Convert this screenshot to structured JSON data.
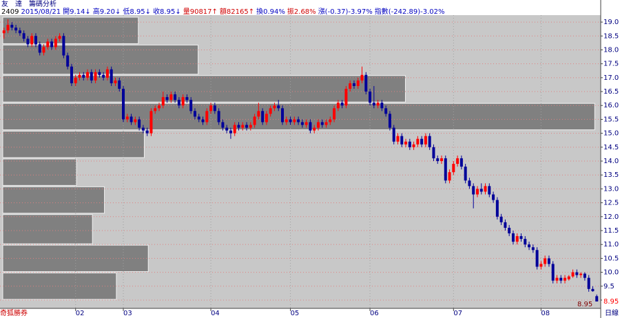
{
  "chart_data": {
    "type": "candlestick",
    "title": "友　達　籌碼分析",
    "info": [
      {
        "text": "2409",
        "color": "#000000"
      },
      {
        "text": "2015/08/21",
        "color": "#0000c0"
      },
      {
        "text": "開9.14↓",
        "color": "#0000c0"
      },
      {
        "text": "高9.20↓",
        "color": "#0000c0"
      },
      {
        "text": "低8.95↓",
        "color": "#0000c0"
      },
      {
        "text": "收8.95↓",
        "color": "#0000c0"
      },
      {
        "text": "量90817↑",
        "color": "#d00000"
      },
      {
        "text": "額82165↑",
        "color": "#d00000"
      },
      {
        "text": "換0.94%",
        "color": "#0000c0"
      },
      {
        "text": "振2.68%",
        "color": "#d00000"
      },
      {
        "text": "漲(-0.37)-3.97%",
        "color": "#0000c0"
      },
      {
        "text": "指數(-242.89)-3.02%",
        "color": "#0000c0"
      }
    ],
    "brand": "奇狐勝券",
    "period": "日線",
    "last_price_label": "8.95",
    "up_color": "#ff0000",
    "down_color": "#000099",
    "grid": true,
    "xlim": [
      -1,
      150
    ],
    "xticks": [
      {
        "value": 18,
        "label": "02"
      },
      {
        "value": 30,
        "label": "03"
      },
      {
        "value": 52,
        "label": "04"
      },
      {
        "value": 72,
        "label": "05"
      },
      {
        "value": 92,
        "label": "06"
      },
      {
        "value": 113,
        "label": "07"
      },
      {
        "value": 135,
        "label": "08"
      }
    ],
    "ylim": [
      8.9,
      19.2
    ],
    "yticks": [
      {
        "value": 9.0,
        "label": "9.0"
      },
      {
        "value": 9.5,
        "label": "9.5"
      },
      {
        "value": 10.0,
        "label": "10.0"
      },
      {
        "value": 10.5,
        "label": "10.5"
      },
      {
        "value": 11.0,
        "label": "11.0"
      },
      {
        "value": 11.5,
        "label": "11.5"
      },
      {
        "value": 12.0,
        "label": "12.0"
      },
      {
        "value": 12.5,
        "label": "12.5"
      },
      {
        "value": 13.0,
        "label": "13.0"
      },
      {
        "value": 13.5,
        "label": "13.5"
      },
      {
        "value": 14.0,
        "label": "14.0"
      },
      {
        "value": 14.5,
        "label": "14.5"
      },
      {
        "value": 15.0,
        "label": "15.0"
      },
      {
        "value": 15.5,
        "label": "15.5"
      },
      {
        "value": 16.0,
        "label": "16.0"
      },
      {
        "value": 16.5,
        "label": "16.5"
      },
      {
        "value": 17.0,
        "label": "17.0"
      },
      {
        "value": 17.5,
        "label": "17.5"
      },
      {
        "value": 18.0,
        "label": "18.0"
      },
      {
        "value": 18.5,
        "label": "18.5"
      },
      {
        "value": 19.0,
        "label": "19.0"
      }
    ],
    "volume_profile": {
      "color": "#808080",
      "xlim": [
        0,
        30
      ],
      "bins": [
        19.2,
        18.2,
        17.1,
        16.1,
        15.1,
        14.1,
        13.1,
        12.1,
        11.0,
        10.0,
        9.0
      ],
      "values": [
        6.8,
        9.8,
        20.2,
        29.7,
        7.1,
        3.7,
        5.1,
        4.5,
        7.3,
        5.7
      ]
    },
    "candles": [
      [
        18.6,
        18.8,
        18.4,
        18.7
      ],
      [
        18.7,
        19.1,
        18.6,
        18.9
      ],
      [
        18.9,
        19.0,
        18.7,
        18.8
      ],
      [
        18.8,
        18.9,
        18.6,
        18.7
      ],
      [
        18.7,
        18.8,
        18.5,
        18.6
      ],
      [
        18.6,
        18.7,
        18.3,
        18.4
      ],
      [
        18.4,
        18.5,
        18.1,
        18.2
      ],
      [
        18.2,
        18.6,
        18.1,
        18.5
      ],
      [
        18.5,
        18.6,
        18.1,
        18.2
      ],
      [
        18.2,
        18.3,
        17.8,
        17.9
      ],
      [
        17.9,
        18.2,
        17.8,
        18.1
      ],
      [
        18.1,
        18.4,
        18.0,
        18.3
      ],
      [
        18.3,
        18.4,
        18.0,
        18.1
      ],
      [
        18.1,
        18.5,
        18.0,
        18.4
      ],
      [
        18.4,
        18.6,
        18.3,
        18.5
      ],
      [
        18.5,
        18.6,
        17.7,
        17.8
      ],
      [
        17.8,
        17.9,
        17.3,
        17.4
      ],
      [
        17.4,
        17.5,
        16.7,
        16.8
      ],
      [
        16.8,
        17.1,
        16.7,
        17.0
      ],
      [
        17.0,
        17.2,
        16.9,
        17.1
      ],
      [
        17.1,
        17.2,
        16.9,
        17.0
      ],
      [
        17.0,
        17.3,
        16.9,
        17.2
      ],
      [
        17.2,
        17.3,
        16.8,
        16.9
      ],
      [
        16.9,
        17.3,
        16.8,
        17.2
      ],
      [
        17.2,
        17.3,
        17.0,
        17.1
      ],
      [
        17.1,
        17.2,
        16.9,
        17.0
      ],
      [
        17.0,
        17.4,
        16.9,
        17.3
      ],
      [
        17.3,
        17.4,
        16.7,
        16.8
      ],
      [
        16.8,
        17.0,
        16.7,
        16.9
      ],
      [
        16.9,
        17.0,
        16.5,
        16.6
      ],
      [
        16.6,
        16.7,
        15.4,
        15.5
      ],
      [
        15.5,
        15.7,
        15.4,
        15.6
      ],
      [
        15.6,
        15.7,
        15.3,
        15.4
      ],
      [
        15.4,
        15.6,
        15.3,
        15.5
      ],
      [
        15.5,
        15.6,
        15.1,
        15.2
      ],
      [
        15.2,
        15.3,
        15.0,
        15.1
      ],
      [
        15.1,
        15.2,
        14.9,
        15.0
      ],
      [
        15.0,
        15.9,
        14.9,
        15.8
      ],
      [
        15.8,
        16.0,
        15.7,
        15.9
      ],
      [
        15.9,
        16.1,
        15.8,
        16.0
      ],
      [
        16.0,
        16.5,
        15.9,
        16.3
      ],
      [
        16.3,
        16.4,
        16.1,
        16.2
      ],
      [
        16.2,
        16.5,
        16.1,
        16.4
      ],
      [
        16.4,
        16.5,
        16.1,
        16.2
      ],
      [
        16.2,
        16.3,
        15.9,
        16.0
      ],
      [
        16.0,
        16.4,
        15.9,
        16.3
      ],
      [
        16.3,
        16.4,
        16.1,
        16.2
      ],
      [
        16.2,
        16.3,
        15.7,
        15.8
      ],
      [
        15.8,
        15.9,
        15.5,
        15.6
      ],
      [
        15.6,
        15.7,
        15.4,
        15.5
      ],
      [
        15.5,
        15.6,
        15.3,
        15.4
      ],
      [
        15.4,
        15.9,
        15.3,
        15.8
      ],
      [
        15.8,
        16.1,
        15.7,
        16.0
      ],
      [
        16.0,
        16.1,
        15.7,
        15.8
      ],
      [
        15.8,
        15.9,
        15.3,
        15.4
      ],
      [
        15.4,
        15.5,
        15.1,
        15.2
      ],
      [
        15.2,
        15.3,
        15.0,
        15.1
      ],
      [
        15.1,
        15.2,
        14.8,
        15.0
      ],
      [
        15.0,
        15.4,
        14.9,
        15.3
      ],
      [
        15.3,
        15.4,
        15.1,
        15.2
      ],
      [
        15.2,
        15.4,
        15.1,
        15.3
      ],
      [
        15.3,
        15.4,
        15.1,
        15.2
      ],
      [
        15.2,
        15.4,
        15.1,
        15.3
      ],
      [
        15.3,
        15.7,
        15.2,
        15.6
      ],
      [
        15.6,
        16.1,
        15.5,
        15.8
      ],
      [
        15.8,
        15.9,
        15.3,
        15.4
      ],
      [
        15.4,
        15.8,
        15.3,
        15.7
      ],
      [
        15.7,
        16.0,
        15.6,
        15.9
      ],
      [
        15.9,
        16.1,
        15.8,
        16.0
      ],
      [
        16.0,
        16.2,
        15.8,
        15.9
      ],
      [
        15.9,
        16.0,
        15.3,
        15.4
      ],
      [
        15.4,
        15.6,
        15.3,
        15.5
      ],
      [
        15.5,
        15.6,
        15.3,
        15.4
      ],
      [
        15.4,
        15.6,
        15.3,
        15.5
      ],
      [
        15.5,
        15.6,
        15.3,
        15.4
      ],
      [
        15.4,
        15.5,
        15.2,
        15.3
      ],
      [
        15.3,
        15.5,
        15.2,
        15.4
      ],
      [
        15.4,
        15.5,
        15.0,
        15.1
      ],
      [
        15.1,
        15.3,
        15.0,
        15.2
      ],
      [
        15.2,
        15.5,
        15.1,
        15.4
      ],
      [
        15.4,
        15.5,
        15.2,
        15.3
      ],
      [
        15.3,
        15.5,
        15.2,
        15.4
      ],
      [
        15.4,
        15.6,
        15.3,
        15.5
      ],
      [
        15.5,
        16.0,
        15.4,
        15.9
      ],
      [
        15.9,
        16.2,
        15.8,
        16.1
      ],
      [
        16.1,
        16.2,
        15.9,
        16.0
      ],
      [
        16.0,
        16.7,
        15.9,
        16.6
      ],
      [
        16.6,
        16.9,
        16.5,
        16.8
      ],
      [
        16.8,
        16.9,
        16.6,
        16.7
      ],
      [
        16.7,
        17.0,
        16.6,
        16.9
      ],
      [
        16.9,
        17.4,
        16.8,
        17.1
      ],
      [
        17.1,
        17.2,
        16.4,
        16.5
      ],
      [
        16.5,
        16.6,
        16.0,
        16.1
      ],
      [
        16.1,
        16.7,
        15.9,
        16.0
      ],
      [
        16.0,
        16.2,
        15.9,
        16.1
      ],
      [
        16.1,
        16.2,
        15.8,
        15.9
      ],
      [
        15.9,
        16.0,
        15.6,
        15.7
      ],
      [
        15.7,
        15.8,
        15.1,
        15.2
      ],
      [
        15.2,
        15.3,
        14.6,
        14.7
      ],
      [
        14.7,
        15.0,
        14.6,
        14.9
      ],
      [
        14.9,
        15.0,
        14.5,
        14.6
      ],
      [
        14.6,
        14.8,
        14.5,
        14.7
      ],
      [
        14.7,
        14.8,
        14.4,
        14.5
      ],
      [
        14.5,
        14.7,
        14.4,
        14.6
      ],
      [
        14.6,
        14.9,
        14.5,
        14.8
      ],
      [
        14.8,
        14.9,
        14.5,
        14.6
      ],
      [
        14.6,
        15.0,
        14.5,
        14.9
      ],
      [
        14.9,
        15.0,
        14.4,
        14.5
      ],
      [
        14.5,
        14.6,
        14.0,
        14.1
      ],
      [
        14.1,
        14.2,
        13.9,
        14.0
      ],
      [
        14.0,
        14.2,
        13.9,
        14.1
      ],
      [
        14.1,
        14.2,
        13.2,
        13.3
      ],
      [
        13.3,
        13.7,
        13.2,
        13.6
      ],
      [
        13.6,
        14.0,
        13.5,
        13.9
      ],
      [
        13.9,
        14.2,
        13.8,
        14.1
      ],
      [
        14.1,
        14.2,
        13.7,
        13.8
      ],
      [
        13.8,
        13.9,
        13.2,
        13.3
      ],
      [
        13.3,
        13.4,
        13.0,
        13.1
      ],
      [
        13.1,
        13.2,
        12.3,
        12.8
      ],
      [
        12.8,
        13.1,
        12.7,
        13.0
      ],
      [
        13.0,
        13.2,
        12.8,
        12.9
      ],
      [
        12.9,
        13.2,
        12.8,
        13.1
      ],
      [
        13.1,
        13.2,
        12.7,
        12.8
      ],
      [
        12.8,
        12.9,
        12.5,
        12.6
      ],
      [
        12.6,
        12.7,
        11.9,
        12.0
      ],
      [
        12.0,
        12.1,
        11.7,
        11.8
      ],
      [
        11.8,
        11.9,
        11.5,
        11.6
      ],
      [
        11.6,
        11.7,
        11.3,
        11.4
      ],
      [
        11.4,
        11.5,
        11.0,
        11.1
      ],
      [
        11.1,
        11.4,
        11.0,
        11.3
      ],
      [
        11.3,
        11.4,
        11.1,
        11.2
      ],
      [
        11.2,
        11.3,
        10.9,
        11.0
      ],
      [
        11.0,
        11.1,
        10.8,
        10.9
      ],
      [
        10.9,
        11.0,
        10.7,
        10.8
      ],
      [
        10.8,
        10.9,
        10.1,
        10.2
      ],
      [
        10.2,
        10.4,
        10.1,
        10.3
      ],
      [
        10.3,
        10.6,
        10.2,
        10.5
      ],
      [
        10.5,
        10.6,
        10.2,
        10.3
      ],
      [
        10.3,
        10.4,
        9.6,
        9.7
      ],
      [
        9.7,
        9.9,
        9.6,
        9.8
      ],
      [
        9.8,
        9.9,
        9.6,
        9.7
      ],
      [
        9.7,
        9.9,
        9.6,
        9.8
      ],
      [
        9.75,
        9.9,
        9.7,
        9.85
      ],
      [
        9.85,
        10.1,
        9.8,
        10.0
      ],
      [
        10.0,
        10.1,
        9.8,
        9.9
      ],
      [
        9.9,
        10.0,
        9.8,
        9.95
      ],
      [
        9.95,
        10.0,
        9.7,
        9.8
      ],
      [
        9.8,
        9.9,
        9.3,
        9.4
      ],
      [
        9.4,
        9.5,
        9.3,
        9.32
      ],
      [
        9.14,
        9.2,
        8.95,
        8.95
      ]
    ]
  }
}
